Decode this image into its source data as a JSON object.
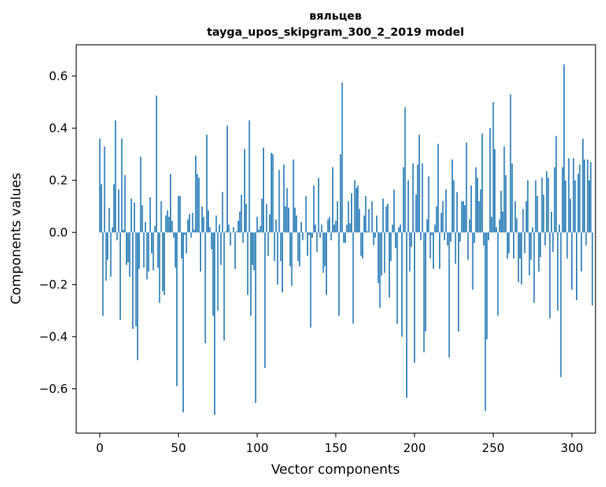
{
  "chart_data": {
    "type": "bar",
    "title": "вяльцев",
    "subtitle": "tayga_upos_skipgram_300_2_2019 model",
    "xlabel": "Vector components",
    "ylabel": "Components values",
    "xlim": [
      -15,
      315
    ],
    "ylim": [
      -0.77,
      0.72
    ],
    "xticks": [
      0,
      50,
      100,
      150,
      200,
      250,
      300
    ],
    "yticks": [
      -0.6,
      -0.4,
      -0.2,
      0.0,
      0.2,
      0.4,
      0.6
    ],
    "ytick_labels": [
      "−0.6",
      "−0.4",
      "−0.2",
      "0.0",
      "0.2",
      "0.4",
      "0.6"
    ],
    "xtick_labels": [
      "0",
      "50",
      "100",
      "150",
      "200",
      "250",
      "300"
    ],
    "bar_color": "#1f77b4",
    "grid": false,
    "series": [
      {
        "values": [
          0.36,
          0.185,
          -0.32,
          0.33,
          -0.185,
          -0.105,
          0.095,
          -0.17,
          0.02,
          0.185,
          0.43,
          -0.03,
          0.165,
          -0.335,
          0.36,
          0.01,
          0.22,
          -0.125,
          -0.115,
          -0.17,
          0.13,
          -0.37,
          0.115,
          -0.36,
          -0.49,
          -0.14,
          0.29,
          0.105,
          -0.135,
          0.04,
          -0.18,
          -0.15,
          0.135,
          -0.08,
          -0.145,
          0.025,
          0.525,
          -0.135,
          -0.27,
          0.12,
          -0.225,
          -0.24,
          0.065,
          0.085,
          0.06,
          0.225,
          0.045,
          -0.02,
          -0.135,
          -0.59,
          0.14,
          0.14,
          -0.1,
          -0.69,
          -0.01,
          -0.08,
          0.05,
          0.07,
          -0.02,
          0.075,
          0.01,
          0.295,
          0.225,
          0.21,
          -0.15,
          0.1,
          0.06,
          -0.425,
          0.375,
          0.085,
          0.02,
          -0.065,
          -0.32,
          -0.7,
          0.065,
          -0.3,
          0.03,
          -0.125,
          0.155,
          -0.415,
          0.005,
          0.41,
          0.03,
          -0.05,
          0.0,
          0.02,
          -0.14,
          0.005,
          0.045,
          0.08,
          0.145,
          -0.04,
          0.32,
          0.11,
          -0.24,
          0.43,
          -0.32,
          -0.125,
          -0.145,
          -0.655,
          0.06,
          0.01,
          0.025,
          0.13,
          0.325,
          -0.52,
          0.11,
          -0.09,
          0.07,
          0.305,
          0.3,
          -0.11,
          0.05,
          -0.2,
          0.24,
          -0.11,
          -0.23,
          0.26,
          0.1,
          0.17,
          0.095,
          -0.13,
          -0.205,
          0.28,
          0.095,
          0.065,
          -0.11,
          -0.13,
          0.04,
          -0.03,
          0.0,
          0.14,
          -0.09,
          -0.01,
          -0.365,
          -0.02,
          0.18,
          0.03,
          -0.075,
          0.21,
          -0.02,
          0.03,
          -0.155,
          -0.13,
          -0.24,
          0.05,
          0.06,
          -0.03,
          0.25,
          0.03,
          0.045,
          0.12,
          -0.32,
          0.3,
          0.575,
          -0.04,
          -0.04,
          0.03,
          0.12,
          0.035,
          0.15,
          -0.35,
          0.2,
          0.17,
          0.18,
          0.09,
          -0.09,
          -0.1,
          0.065,
          0.14,
          0.005,
          0.09,
          0.0,
          0.12,
          -0.05,
          -0.02,
          0.065,
          -0.195,
          -0.29,
          -0.165,
          0.13,
          -0.155,
          0.1,
          0.11,
          -0.25,
          -0.11,
          0.03,
          0.165,
          -0.06,
          -0.35,
          0.02,
          0.03,
          -0.4,
          0.25,
          0.48,
          -0.635,
          0.2,
          -0.15,
          -0.055,
          0.265,
          -0.5,
          0.145,
          0.26,
          0.375,
          -0.03,
          0.265,
          -0.46,
          -0.38,
          0.05,
          0.215,
          -0.1,
          -0.01,
          -0.14,
          0.03,
          0.1,
          0.34,
          -0.14,
          0.075,
          0.12,
          -0.03,
          0.165,
          -0.05,
          -0.48,
          -0.035,
          0.28,
          0.2,
          -0.12,
          0.155,
          -0.38,
          -0.035,
          0.12,
          0.12,
          0.105,
          0.345,
          -0.105,
          0.05,
          0.18,
          -0.22,
          -0.04,
          0.25,
          0.21,
          0.12,
          0.165,
          0.38,
          -0.05,
          -0.685,
          -0.41,
          -0.03,
          0.4,
          0.06,
          0.5,
          0.32,
          0.02,
          -0.32,
          0.05,
          0.16,
          0.08,
          0.33,
          0.22,
          -0.1,
          -0.08,
          0.53,
          0.265,
          -0.1,
          0.12,
          0.055,
          -0.19,
          -0.1,
          -0.2,
          0.09,
          -0.08,
          0.12,
          0.2,
          -0.165,
          -0.105,
          0.02,
          -0.27,
          0.2,
          0.14,
          -0.15,
          -0.095,
          0.21,
          0.145,
          -0.05,
          0.235,
          0.21,
          -0.33,
          0.08,
          -0.075,
          0.25,
          0.37,
          -0.3,
          0.03,
          -0.555,
          0.25,
          0.645,
          0.2,
          -0.1,
          0.285,
          0.13,
          -0.22,
          0.285,
          0.2,
          -0.26,
          0.225,
          0.26,
          -0.15,
          0.36,
          0.28,
          -0.05,
          0.28,
          0.2,
          0.27,
          -0.28
        ]
      }
    ]
  }
}
